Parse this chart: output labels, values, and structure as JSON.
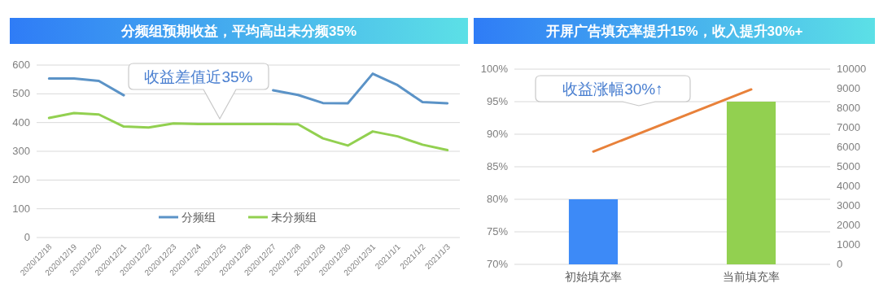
{
  "chart_data": [
    {
      "type": "line",
      "title": "分频组预期收益，平均高出未分频35%",
      "categories": [
        "2020/12/18",
        "2020/12/19",
        "2020/12/20",
        "2020/12/21",
        "2020/12/22",
        "2020/12/23",
        "2020/12/24",
        "2020/12/25",
        "2020/12/26",
        "2020/12/27",
        "2020/12/28",
        "2020/12/29",
        "2020/12/30",
        "2020/12/31",
        "2021/1/1",
        "2021/1/2",
        "2021/1/3"
      ],
      "series": [
        {
          "name": "分频组",
          "color": "#5b93c7",
          "values": [
            553,
            553,
            545,
            495,
            null,
            null,
            null,
            null,
            null,
            512,
            496,
            468,
            467,
            570,
            530,
            471,
            467
          ]
        },
        {
          "name": "未分频组",
          "color": "#92d050",
          "values": [
            416,
            433,
            428,
            386,
            383,
            397,
            395,
            395,
            395,
            395,
            394,
            345,
            320,
            369,
            352,
            323,
            304
          ]
        }
      ],
      "ylim": [
        0,
        600
      ],
      "yticks": [
        0,
        100,
        200,
        300,
        400,
        500,
        600
      ],
      "grid": "y",
      "legend": "bottom",
      "annotations": [
        "收益差值近35%"
      ]
    },
    {
      "type": "bar",
      "title": "开屏广告填充率提升15%，收入提升30%+",
      "categories": [
        "初始填充率",
        "当前填充率"
      ],
      "series": [
        {
          "colors": [
            "#3d8af7",
            "#92d050"
          ],
          "values": [
            80,
            95
          ]
        },
        {
          "type": "line",
          "axis": "y2",
          "color": "#e8813a",
          "values": [
            5780,
            8960
          ]
        }
      ],
      "ylim": [
        70,
        100
      ],
      "yticks": [
        {
          "value": 70,
          "label": "70%"
        },
        {
          "value": 75,
          "label": "75%"
        },
        {
          "value": 80,
          "label": "80%"
        },
        {
          "value": 85,
          "label": "85%"
        },
        {
          "value": 90,
          "label": "90%"
        },
        {
          "value": 95,
          "label": "95%"
        },
        {
          "value": 100,
          "label": "100%"
        }
      ],
      "y2lim": [
        0,
        10000
      ],
      "y2ticks": [
        0,
        1000,
        2000,
        3000,
        4000,
        5000,
        6000,
        7000,
        8000,
        9000,
        10000
      ],
      "grid": "y",
      "annotations": [
        "收益涨幅30%↑"
      ]
    }
  ]
}
